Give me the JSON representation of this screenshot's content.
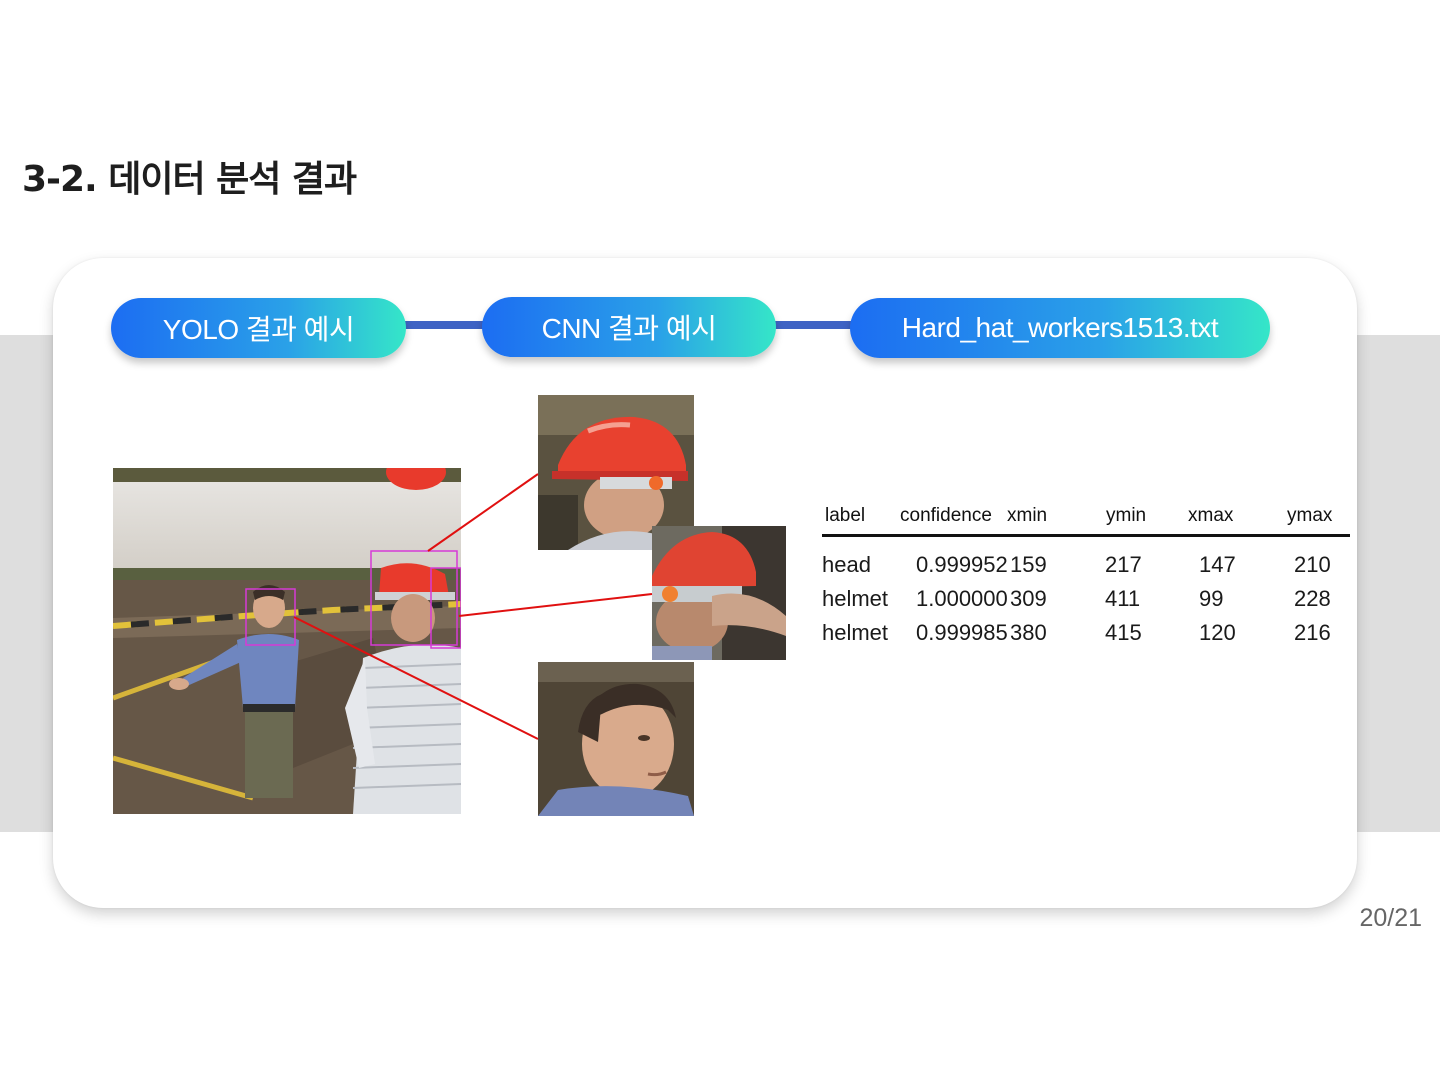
{
  "slide": {
    "title": "3-2. 데이터 분석 결과",
    "page_number": "20/21"
  },
  "steps": [
    {
      "label": "YOLO 결과 예시"
    },
    {
      "label": "CNN 결과 예시"
    },
    {
      "label": "Hard_hat_workers1513.txt"
    }
  ],
  "colors": {
    "pill_gradient_start": "#1c6df2",
    "pill_gradient_end": "#35e6c8",
    "connector": "#3f63c4",
    "detection_box": "#d63ad6",
    "link_line": "#e01010",
    "helmet": "#e83a2c"
  },
  "table": {
    "headers": [
      "label",
      "confidence",
      "xmin",
      "ymin",
      "xmax",
      "ymax"
    ],
    "rows": [
      {
        "label": "head",
        "confidence": "0.999952",
        "xmin": "159",
        "ymin": "217",
        "xmax": "147",
        "ymax": "210"
      },
      {
        "label": "helmet",
        "confidence": "1.000000",
        "xmin": "309",
        "ymin": "411",
        "xmax": "99",
        "ymax": "228"
      },
      {
        "label": "helmet",
        "confidence": "0.999985",
        "xmin": "380",
        "ymin": "415",
        "xmax": "120",
        "ymax": "216"
      }
    ]
  }
}
